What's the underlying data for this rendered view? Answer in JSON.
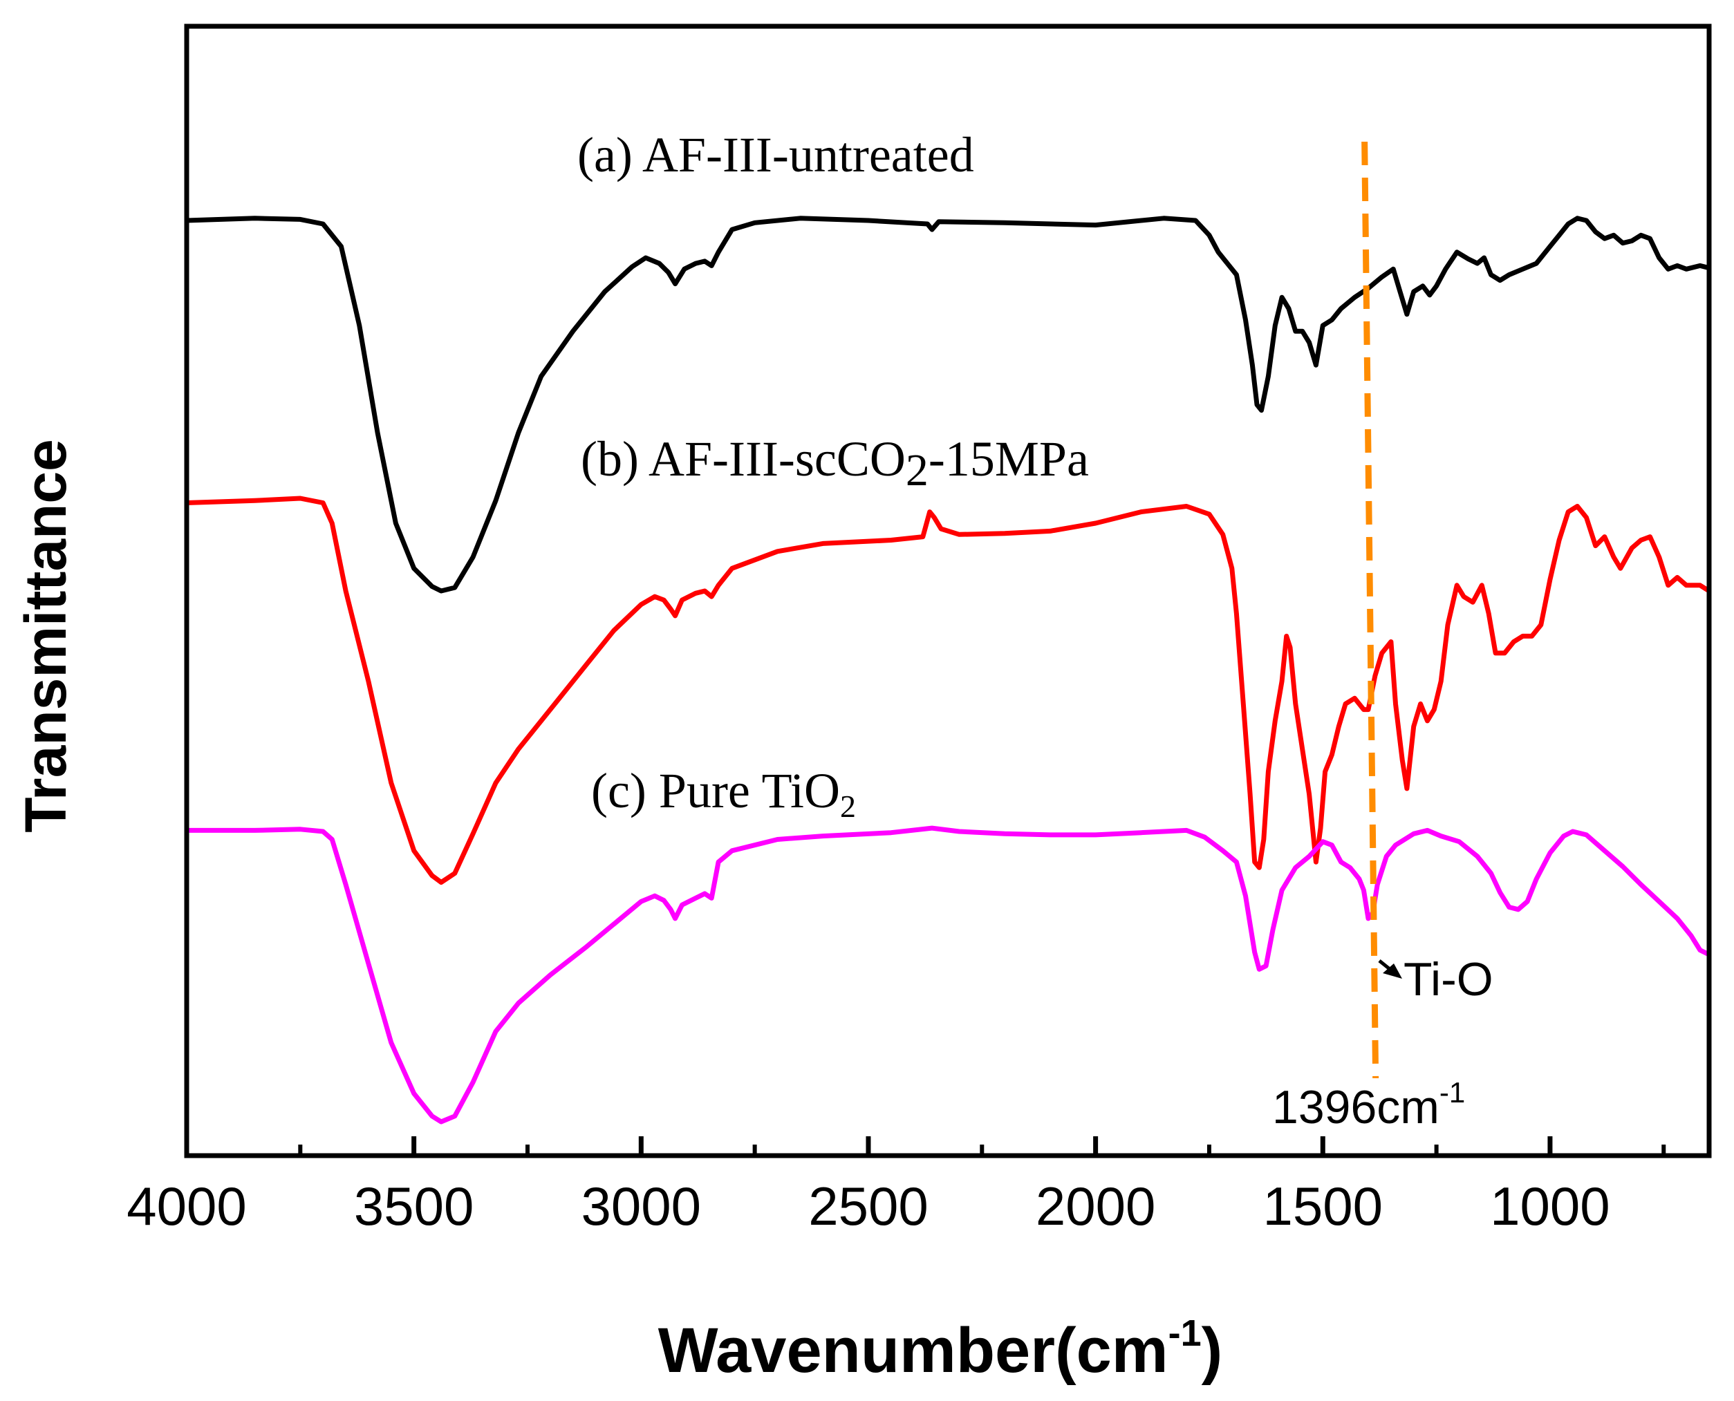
{
  "chart_data": {
    "type": "line",
    "title": "",
    "xlabel": "Wavenumber(cm",
    "xlabel_sup": "-1",
    "xlabel_close": ")",
    "ylabel": "Transmittance",
    "xlim": [
      4000,
      650
    ],
    "ylim": [
      0,
      1
    ],
    "x_reversed": true,
    "x_ticks": [
      4000,
      3500,
      3000,
      2500,
      2000,
      1500,
      1000
    ],
    "grid": false,
    "legend": "none",
    "series": [
      {
        "name": "(a) AF-III-untreated",
        "label_main": "(a) AF-III-untreated",
        "color": "#000000",
        "points": [
          [
            4000,
            0.828
          ],
          [
            3850,
            0.83
          ],
          [
            3750,
            0.829
          ],
          [
            3700,
            0.825
          ],
          [
            3660,
            0.805
          ],
          [
            3620,
            0.735
          ],
          [
            3580,
            0.64
          ],
          [
            3540,
            0.56
          ],
          [
            3500,
            0.52
          ],
          [
            3460,
            0.504
          ],
          [
            3440,
            0.5
          ],
          [
            3410,
            0.503
          ],
          [
            3370,
            0.53
          ],
          [
            3320,
            0.58
          ],
          [
            3270,
            0.64
          ],
          [
            3220,
            0.69
          ],
          [
            3150,
            0.73
          ],
          [
            3080,
            0.765
          ],
          [
            3020,
            0.787
          ],
          [
            2990,
            0.795
          ],
          [
            2960,
            0.79
          ],
          [
            2940,
            0.782
          ],
          [
            2925,
            0.772
          ],
          [
            2905,
            0.785
          ],
          [
            2880,
            0.79
          ],
          [
            2860,
            0.792
          ],
          [
            2845,
            0.788
          ],
          [
            2830,
            0.8
          ],
          [
            2800,
            0.82
          ],
          [
            2750,
            0.826
          ],
          [
            2650,
            0.83
          ],
          [
            2500,
            0.828
          ],
          [
            2370,
            0.825
          ],
          [
            2360,
            0.82
          ],
          [
            2345,
            0.827
          ],
          [
            2200,
            0.826
          ],
          [
            2000,
            0.824
          ],
          [
            1850,
            0.83
          ],
          [
            1780,
            0.828
          ],
          [
            1750,
            0.815
          ],
          [
            1730,
            0.8
          ],
          [
            1710,
            0.79
          ],
          [
            1690,
            0.78
          ],
          [
            1670,
            0.74
          ],
          [
            1655,
            0.7
          ],
          [
            1645,
            0.665
          ],
          [
            1635,
            0.66
          ],
          [
            1620,
            0.69
          ],
          [
            1605,
            0.735
          ],
          [
            1590,
            0.76
          ],
          [
            1575,
            0.75
          ],
          [
            1560,
            0.73
          ],
          [
            1545,
            0.73
          ],
          [
            1530,
            0.72
          ],
          [
            1515,
            0.7
          ],
          [
            1500,
            0.735
          ],
          [
            1480,
            0.74
          ],
          [
            1460,
            0.75
          ],
          [
            1430,
            0.76
          ],
          [
            1400,
            0.768
          ],
          [
            1370,
            0.778
          ],
          [
            1345,
            0.785
          ],
          [
            1330,
            0.765
          ],
          [
            1315,
            0.745
          ],
          [
            1300,
            0.765
          ],
          [
            1280,
            0.77
          ],
          [
            1265,
            0.762
          ],
          [
            1250,
            0.77
          ],
          [
            1230,
            0.785
          ],
          [
            1205,
            0.8
          ],
          [
            1180,
            0.794
          ],
          [
            1160,
            0.79
          ],
          [
            1145,
            0.795
          ],
          [
            1130,
            0.78
          ],
          [
            1110,
            0.775
          ],
          [
            1090,
            0.78
          ],
          [
            1060,
            0.785
          ],
          [
            1030,
            0.79
          ],
          [
            1000,
            0.805
          ],
          [
            980,
            0.815
          ],
          [
            960,
            0.825
          ],
          [
            940,
            0.83
          ],
          [
            920,
            0.828
          ],
          [
            900,
            0.818
          ],
          [
            880,
            0.812
          ],
          [
            860,
            0.815
          ],
          [
            840,
            0.808
          ],
          [
            820,
            0.81
          ],
          [
            800,
            0.815
          ],
          [
            780,
            0.812
          ],
          [
            760,
            0.795
          ],
          [
            740,
            0.785
          ],
          [
            720,
            0.788
          ],
          [
            700,
            0.785
          ],
          [
            670,
            0.788
          ],
          [
            650,
            0.786
          ]
        ]
      },
      {
        "name": "(b) AF-III-scCO2-15MPa",
        "label_main": "(b) AF-III-scCO",
        "label_sub": "2",
        "label_tail": "-15MPa",
        "color": "#ff0000",
        "points": [
          [
            4000,
            0.578
          ],
          [
            3850,
            0.58
          ],
          [
            3750,
            0.582
          ],
          [
            3700,
            0.578
          ],
          [
            3680,
            0.56
          ],
          [
            3650,
            0.5
          ],
          [
            3600,
            0.42
          ],
          [
            3550,
            0.33
          ],
          [
            3500,
            0.27
          ],
          [
            3460,
            0.248
          ],
          [
            3440,
            0.242
          ],
          [
            3410,
            0.25
          ],
          [
            3370,
            0.285
          ],
          [
            3320,
            0.33
          ],
          [
            3270,
            0.36
          ],
          [
            3200,
            0.395
          ],
          [
            3120,
            0.435
          ],
          [
            3060,
            0.465
          ],
          [
            3000,
            0.488
          ],
          [
            2970,
            0.495
          ],
          [
            2950,
            0.492
          ],
          [
            2935,
            0.484
          ],
          [
            2925,
            0.478
          ],
          [
            2910,
            0.492
          ],
          [
            2880,
            0.498
          ],
          [
            2860,
            0.5
          ],
          [
            2845,
            0.495
          ],
          [
            2830,
            0.505
          ],
          [
            2800,
            0.52
          ],
          [
            2700,
            0.535
          ],
          [
            2600,
            0.542
          ],
          [
            2450,
            0.545
          ],
          [
            2380,
            0.548
          ],
          [
            2365,
            0.57
          ],
          [
            2355,
            0.565
          ],
          [
            2340,
            0.555
          ],
          [
            2300,
            0.55
          ],
          [
            2200,
            0.551
          ],
          [
            2100,
            0.553
          ],
          [
            2000,
            0.56
          ],
          [
            1900,
            0.57
          ],
          [
            1800,
            0.575
          ],
          [
            1750,
            0.568
          ],
          [
            1720,
            0.55
          ],
          [
            1700,
            0.52
          ],
          [
            1690,
            0.48
          ],
          [
            1675,
            0.4
          ],
          [
            1660,
            0.32
          ],
          [
            1650,
            0.26
          ],
          [
            1640,
            0.255
          ],
          [
            1630,
            0.28
          ],
          [
            1620,
            0.34
          ],
          [
            1605,
            0.385
          ],
          [
            1590,
            0.42
          ],
          [
            1580,
            0.46
          ],
          [
            1572,
            0.45
          ],
          [
            1560,
            0.4
          ],
          [
            1545,
            0.36
          ],
          [
            1530,
            0.32
          ],
          [
            1515,
            0.26
          ],
          [
            1505,
            0.29
          ],
          [
            1495,
            0.34
          ],
          [
            1480,
            0.355
          ],
          [
            1465,
            0.38
          ],
          [
            1450,
            0.4
          ],
          [
            1430,
            0.405
          ],
          [
            1410,
            0.395
          ],
          [
            1400,
            0.395
          ],
          [
            1385,
            0.425
          ],
          [
            1370,
            0.445
          ],
          [
            1350,
            0.455
          ],
          [
            1340,
            0.4
          ],
          [
            1325,
            0.35
          ],
          [
            1315,
            0.325
          ],
          [
            1300,
            0.38
          ],
          [
            1285,
            0.4
          ],
          [
            1270,
            0.385
          ],
          [
            1255,
            0.395
          ],
          [
            1240,
            0.42
          ],
          [
            1225,
            0.47
          ],
          [
            1205,
            0.505
          ],
          [
            1190,
            0.495
          ],
          [
            1170,
            0.49
          ],
          [
            1150,
            0.505
          ],
          [
            1135,
            0.48
          ],
          [
            1120,
            0.445
          ],
          [
            1100,
            0.445
          ],
          [
            1080,
            0.455
          ],
          [
            1060,
            0.46
          ],
          [
            1040,
            0.46
          ],
          [
            1020,
            0.47
          ],
          [
            1000,
            0.51
          ],
          [
            980,
            0.545
          ],
          [
            960,
            0.57
          ],
          [
            940,
            0.575
          ],
          [
            920,
            0.565
          ],
          [
            900,
            0.54
          ],
          [
            880,
            0.548
          ],
          [
            860,
            0.53
          ],
          [
            845,
            0.52
          ],
          [
            820,
            0.538
          ],
          [
            800,
            0.545
          ],
          [
            780,
            0.548
          ],
          [
            760,
            0.53
          ],
          [
            740,
            0.505
          ],
          [
            720,
            0.512
          ],
          [
            700,
            0.505
          ],
          [
            670,
            0.505
          ],
          [
            650,
            0.5
          ]
        ]
      },
      {
        "name": "(c) Pure TiO2",
        "label_main": "(c) Pure TiO",
        "label_sub": "2",
        "color": "#ff00ff",
        "points": [
          [
            4000,
            0.288
          ],
          [
            3850,
            0.288
          ],
          [
            3750,
            0.289
          ],
          [
            3700,
            0.287
          ],
          [
            3680,
            0.28
          ],
          [
            3650,
            0.24
          ],
          [
            3600,
            0.17
          ],
          [
            3550,
            0.1
          ],
          [
            3500,
            0.055
          ],
          [
            3460,
            0.035
          ],
          [
            3440,
            0.03
          ],
          [
            3410,
            0.035
          ],
          [
            3370,
            0.065
          ],
          [
            3320,
            0.11
          ],
          [
            3270,
            0.135
          ],
          [
            3200,
            0.16
          ],
          [
            3120,
            0.185
          ],
          [
            3060,
            0.205
          ],
          [
            3000,
            0.225
          ],
          [
            2970,
            0.23
          ],
          [
            2950,
            0.226
          ],
          [
            2935,
            0.218
          ],
          [
            2925,
            0.21
          ],
          [
            2910,
            0.222
          ],
          [
            2880,
            0.228
          ],
          [
            2860,
            0.232
          ],
          [
            2845,
            0.228
          ],
          [
            2830,
            0.26
          ],
          [
            2800,
            0.27
          ],
          [
            2700,
            0.28
          ],
          [
            2600,
            0.283
          ],
          [
            2450,
            0.286
          ],
          [
            2360,
            0.29
          ],
          [
            2300,
            0.287
          ],
          [
            2200,
            0.285
          ],
          [
            2100,
            0.284
          ],
          [
            2000,
            0.284
          ],
          [
            1900,
            0.286
          ],
          [
            1800,
            0.288
          ],
          [
            1760,
            0.282
          ],
          [
            1720,
            0.27
          ],
          [
            1690,
            0.26
          ],
          [
            1670,
            0.23
          ],
          [
            1650,
            0.18
          ],
          [
            1640,
            0.165
          ],
          [
            1625,
            0.168
          ],
          [
            1610,
            0.2
          ],
          [
            1590,
            0.235
          ],
          [
            1560,
            0.255
          ],
          [
            1530,
            0.265
          ],
          [
            1500,
            0.278
          ],
          [
            1480,
            0.275
          ],
          [
            1460,
            0.26
          ],
          [
            1440,
            0.255
          ],
          [
            1420,
            0.245
          ],
          [
            1410,
            0.235
          ],
          [
            1400,
            0.21
          ],
          [
            1390,
            0.215
          ],
          [
            1380,
            0.24
          ],
          [
            1360,
            0.265
          ],
          [
            1340,
            0.275
          ],
          [
            1300,
            0.285
          ],
          [
            1270,
            0.288
          ],
          [
            1240,
            0.283
          ],
          [
            1200,
            0.278
          ],
          [
            1160,
            0.265
          ],
          [
            1130,
            0.25
          ],
          [
            1110,
            0.233
          ],
          [
            1090,
            0.22
          ],
          [
            1070,
            0.218
          ],
          [
            1050,
            0.225
          ],
          [
            1030,
            0.245
          ],
          [
            1000,
            0.268
          ],
          [
            970,
            0.283
          ],
          [
            950,
            0.287
          ],
          [
            920,
            0.284
          ],
          [
            880,
            0.27
          ],
          [
            840,
            0.256
          ],
          [
            800,
            0.24
          ],
          [
            760,
            0.225
          ],
          [
            720,
            0.21
          ],
          [
            690,
            0.195
          ],
          [
            670,
            0.182
          ],
          [
            650,
            0.178
          ]
        ]
      }
    ],
    "annotations": {
      "vline_x": 1396,
      "vline_color": "#ff8c00",
      "peak_label": "1396cm",
      "peak_label_sup": "-1",
      "assign_label": "Ti-O"
    }
  }
}
